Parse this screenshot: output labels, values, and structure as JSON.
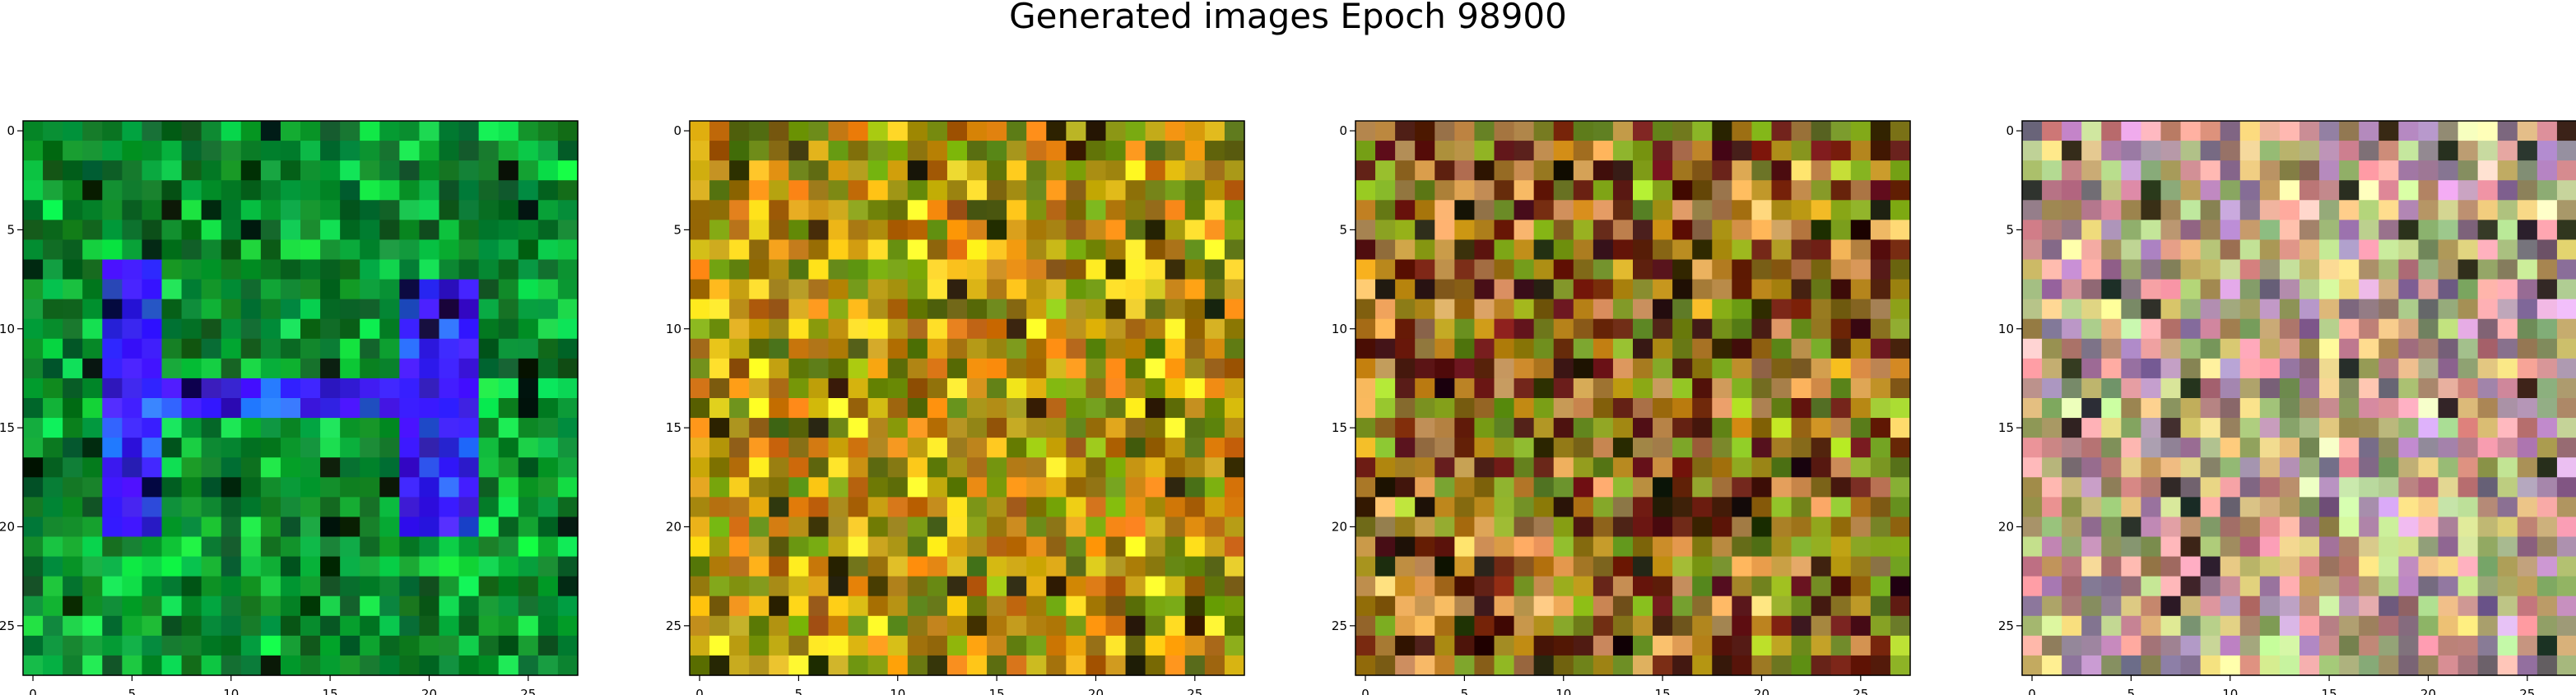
{
  "figure": {
    "title": "Generated images Epoch 98900"
  },
  "chart_data": [
    {
      "type": "heatmap",
      "name": "generated-image-1",
      "dominant_colors": [
        "#0a7a2a",
        "#3a1cff",
        "#12c040"
      ],
      "xticks": [
        "0",
        "5",
        "10",
        "15",
        "20",
        "25"
      ],
      "yticks": [
        "0",
        "5",
        "10",
        "15",
        "20",
        "25"
      ],
      "xlim": [
        -0.5,
        27.5
      ],
      "ylim": [
        27.5,
        -0.5
      ],
      "grid_size": [
        28,
        28
      ]
    },
    {
      "type": "heatmap",
      "name": "generated-image-2",
      "dominant_colors": [
        "#b08a10",
        "#d07a10",
        "#e6c020",
        "#6a8a10"
      ],
      "xticks": [
        "0",
        "5",
        "10",
        "15",
        "20",
        "25"
      ],
      "yticks": [
        "0",
        "5",
        "10",
        "15",
        "20",
        "25"
      ],
      "xlim": [
        -0.5,
        27.5
      ],
      "ylim": [
        27.5,
        -0.5
      ],
      "grid_size": [
        28,
        28
      ]
    },
    {
      "type": "heatmap",
      "name": "generated-image-3",
      "dominant_colors": [
        "#a07818",
        "#c89050",
        "#7a9a20",
        "#5a1a10"
      ],
      "xticks": [
        "0",
        "5",
        "10",
        "15",
        "20",
        "25"
      ],
      "yticks": [
        "0",
        "5",
        "10",
        "15",
        "20",
        "25"
      ],
      "xlim": [
        -0.5,
        27.5
      ],
      "ylim": [
        27.5,
        -0.5
      ],
      "grid_size": [
        28,
        28
      ]
    },
    {
      "type": "heatmap",
      "name": "generated-image-4",
      "dominant_colors": [
        "#c8b070",
        "#d89090",
        "#a8c080",
        "#9a7aa0"
      ],
      "xticks": [
        "0",
        "5",
        "10",
        "15",
        "20",
        "25"
      ],
      "yticks": [
        "0",
        "5",
        "10",
        "15",
        "20",
        "25"
      ],
      "xlim": [
        -0.5,
        27.5
      ],
      "ylim": [
        27.5,
        -0.5
      ],
      "grid_size": [
        28,
        28
      ]
    }
  ]
}
